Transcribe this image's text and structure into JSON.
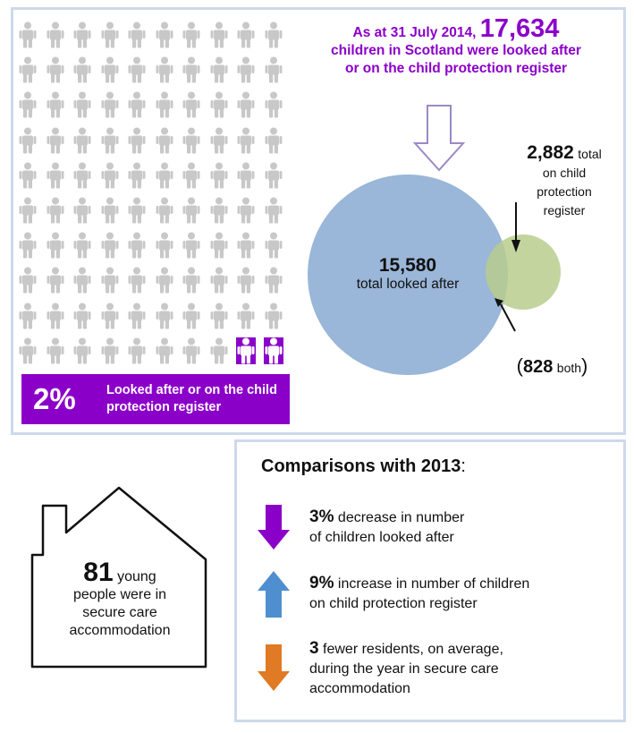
{
  "people_grid": {
    "rows": 10,
    "cols": 10,
    "highlighted_count": 2,
    "base_color": "#c8c8c8",
    "highlight_color": "#8b00c9"
  },
  "caption": {
    "percent": "2%",
    "text": "Looked after or on the child protection register",
    "bg_color": "#8b00c9"
  },
  "headline": {
    "prefix": "As at 31 July 2014,",
    "number": "17,634",
    "line2": "children in Scotland were looked after",
    "line3": "or on the child protection register",
    "color": "#8b00c9"
  },
  "venn": {
    "looked_after": {
      "value": "15,580",
      "label": "total looked after",
      "color": "#9ab6d8"
    },
    "cpr": {
      "value": "2,882",
      "label_word": "total",
      "label_line2": "on child",
      "label_line3": "protection",
      "label_line4": "register",
      "color": "#b8cc8e"
    },
    "both": {
      "open": "(",
      "value": "828",
      "label": "both",
      "close": ")"
    }
  },
  "house": {
    "number": "81",
    "word": "young",
    "line2": "people were in",
    "line3": "secure care",
    "line4": "accommodation"
  },
  "comparisons": {
    "title": "Comparisons with 2013",
    "colon": ":",
    "items": [
      {
        "number": "3%",
        "line1": "decrease in number",
        "line2": "of children looked after",
        "direction": "down",
        "color": "#8b00c9"
      },
      {
        "number": "9%",
        "line1": "increase in number of children",
        "line2": "on child protection register",
        "direction": "up",
        "color": "#4f8fd0"
      },
      {
        "number": "3",
        "line1": "fewer residents, on average,",
        "line2": "during the year in secure care",
        "line3": "accommodation",
        "direction": "down",
        "color": "#e07a24"
      }
    ]
  }
}
